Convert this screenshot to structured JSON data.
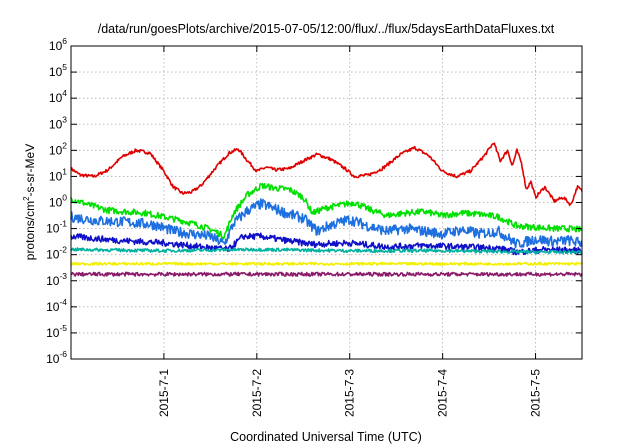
{
  "chart_data": {
    "type": "line",
    "title": "/data/run/goesPlots/archive/2015-07-05/12:00/flux/../flux/5daysEarthDataFluxes.txt",
    "xlabel": "Coordinated Universal Time (UTC)",
    "ylabel": {
      "base": "protons/cm",
      "sup": "2",
      "rest": "-s-sr-MeV"
    },
    "y_scale": "log",
    "ylim_exp": [
      -6,
      6
    ],
    "y_tick_base": "10",
    "x_range_days": [
      0,
      5.5
    ],
    "x_ticks": [
      {
        "day": 1,
        "label": "2015-7-1"
      },
      {
        "day": 2,
        "label": "2015-7-2"
      },
      {
        "day": 3,
        "label": "2015-7-3"
      },
      {
        "day": 4,
        "label": "2015-7-4"
      },
      {
        "day": 5,
        "label": "2015-7-5"
      }
    ],
    "grid": true,
    "legend": "none",
    "series": [
      {
        "color": "#e00000",
        "noise": 0.06,
        "points": [
          [
            0,
            1.3
          ],
          [
            0.1,
            1.05
          ],
          [
            0.25,
            1.0
          ],
          [
            0.4,
            1.25
          ],
          [
            0.55,
            1.75
          ],
          [
            0.7,
            2.0
          ],
          [
            0.85,
            1.9
          ],
          [
            1.0,
            1.2
          ],
          [
            1.1,
            0.6
          ],
          [
            1.2,
            0.35
          ],
          [
            1.3,
            0.4
          ],
          [
            1.4,
            0.65
          ],
          [
            1.55,
            1.3
          ],
          [
            1.7,
            1.9
          ],
          [
            1.8,
            2.05
          ],
          [
            1.9,
            1.6
          ],
          [
            2.0,
            1.2
          ],
          [
            2.1,
            1.35
          ],
          [
            2.2,
            1.25
          ],
          [
            2.35,
            1.3
          ],
          [
            2.5,
            1.6
          ],
          [
            2.65,
            1.85
          ],
          [
            2.8,
            1.65
          ],
          [
            2.95,
            1.3
          ],
          [
            3.05,
            1.0
          ],
          [
            3.2,
            1.05
          ],
          [
            3.35,
            1.3
          ],
          [
            3.55,
            1.85
          ],
          [
            3.7,
            2.1
          ],
          [
            3.85,
            1.8
          ],
          [
            4.0,
            1.2
          ],
          [
            4.15,
            1.0
          ],
          [
            4.3,
            1.2
          ],
          [
            4.45,
            1.8
          ],
          [
            4.55,
            2.3
          ],
          [
            4.62,
            1.6
          ],
          [
            4.7,
            2.0
          ],
          [
            4.75,
            1.4
          ],
          [
            4.8,
            2.0
          ],
          [
            4.85,
            1.5
          ],
          [
            4.9,
            0.5
          ],
          [
            4.95,
            0.8
          ],
          [
            5.0,
            0.2
          ],
          [
            5.1,
            0.6
          ],
          [
            5.2,
            0.05
          ],
          [
            5.3,
            0.2
          ],
          [
            5.38,
            -0.1
          ],
          [
            5.45,
            0.6
          ],
          [
            5.5,
            0.45
          ]
        ]
      },
      {
        "color": "#00e000",
        "noise": 0.12,
        "points": [
          [
            0,
            0.15
          ],
          [
            0.2,
            -0.1
          ],
          [
            0.4,
            -0.3
          ],
          [
            0.6,
            -0.35
          ],
          [
            0.8,
            -0.4
          ],
          [
            1.0,
            -0.55
          ],
          [
            1.2,
            -0.7
          ],
          [
            1.4,
            -0.9
          ],
          [
            1.55,
            -1.1
          ],
          [
            1.65,
            -1.3
          ],
          [
            1.75,
            -0.4
          ],
          [
            1.9,
            0.3
          ],
          [
            2.05,
            0.65
          ],
          [
            2.2,
            0.55
          ],
          [
            2.35,
            0.5
          ],
          [
            2.5,
            0.2
          ],
          [
            2.6,
            -0.4
          ],
          [
            2.75,
            -0.2
          ],
          [
            2.9,
            -0.1
          ],
          [
            3.05,
            0.0
          ],
          [
            3.2,
            -0.25
          ],
          [
            3.4,
            -0.5
          ],
          [
            3.6,
            -0.4
          ],
          [
            3.8,
            -0.35
          ],
          [
            4.0,
            -0.5
          ],
          [
            4.2,
            -0.4
          ],
          [
            4.4,
            -0.45
          ],
          [
            4.6,
            -0.55
          ],
          [
            4.8,
            -0.9
          ],
          [
            5.0,
            -0.95
          ],
          [
            5.2,
            -1.0
          ],
          [
            5.35,
            -1.0
          ],
          [
            5.5,
            -1.05
          ]
        ]
      },
      {
        "color": "#1e6fe0",
        "noise": 0.2,
        "points": [
          [
            0,
            -0.55
          ],
          [
            0.3,
            -0.7
          ],
          [
            0.6,
            -0.75
          ],
          [
            0.9,
            -0.85
          ],
          [
            1.1,
            -1.1
          ],
          [
            1.3,
            -1.2
          ],
          [
            1.5,
            -1.3
          ],
          [
            1.65,
            -1.6
          ],
          [
            1.75,
            -0.8
          ],
          [
            1.9,
            -0.3
          ],
          [
            2.05,
            -0.05
          ],
          [
            2.2,
            -0.25
          ],
          [
            2.35,
            -0.45
          ],
          [
            2.5,
            -0.6
          ],
          [
            2.65,
            -1.1
          ],
          [
            2.8,
            -0.85
          ],
          [
            3.0,
            -0.65
          ],
          [
            3.2,
            -0.9
          ],
          [
            3.4,
            -1.1
          ],
          [
            3.6,
            -1.0
          ],
          [
            3.8,
            -1.1
          ],
          [
            4.0,
            -1.2
          ],
          [
            4.2,
            -1.05
          ],
          [
            4.4,
            -1.2
          ],
          [
            4.6,
            -1.1
          ],
          [
            4.8,
            -1.6
          ],
          [
            5.0,
            -1.4
          ],
          [
            5.2,
            -1.5
          ],
          [
            5.35,
            -1.45
          ],
          [
            5.5,
            -1.55
          ]
        ]
      },
      {
        "color": "#1010c8",
        "noise": 0.12,
        "points": [
          [
            0,
            -1.3
          ],
          [
            0.5,
            -1.45
          ],
          [
            1.0,
            -1.55
          ],
          [
            1.4,
            -1.7
          ],
          [
            1.7,
            -1.8
          ],
          [
            1.85,
            -1.3
          ],
          [
            2.05,
            -1.3
          ],
          [
            2.3,
            -1.45
          ],
          [
            2.6,
            -1.6
          ],
          [
            3.0,
            -1.55
          ],
          [
            3.4,
            -1.7
          ],
          [
            3.8,
            -1.65
          ],
          [
            4.2,
            -1.7
          ],
          [
            4.6,
            -1.75
          ],
          [
            4.8,
            -1.9
          ],
          [
            5.1,
            -1.8
          ],
          [
            5.5,
            -1.85
          ]
        ]
      },
      {
        "color": "#00b0a0",
        "noise": 0.06,
        "points": [
          [
            0,
            -1.8
          ],
          [
            1.0,
            -1.85
          ],
          [
            2.0,
            -1.8
          ],
          [
            3.0,
            -1.85
          ],
          [
            4.0,
            -1.85
          ],
          [
            5.0,
            -1.9
          ],
          [
            5.5,
            -1.9
          ]
        ]
      },
      {
        "color": "#f0f000",
        "noise": 0.05,
        "points": [
          [
            0,
            -2.35
          ],
          [
            1.0,
            -2.35
          ],
          [
            2.0,
            -2.35
          ],
          [
            3.0,
            -2.35
          ],
          [
            4.0,
            -2.35
          ],
          [
            5.0,
            -2.35
          ],
          [
            5.5,
            -2.35
          ]
        ]
      },
      {
        "color": "#8a1a6a",
        "noise": 0.07,
        "points": [
          [
            0,
            -2.75
          ],
          [
            1.0,
            -2.75
          ],
          [
            2.0,
            -2.75
          ],
          [
            3.0,
            -2.75
          ],
          [
            4.0,
            -2.75
          ],
          [
            5.0,
            -2.75
          ],
          [
            5.5,
            -2.75
          ]
        ]
      }
    ]
  }
}
